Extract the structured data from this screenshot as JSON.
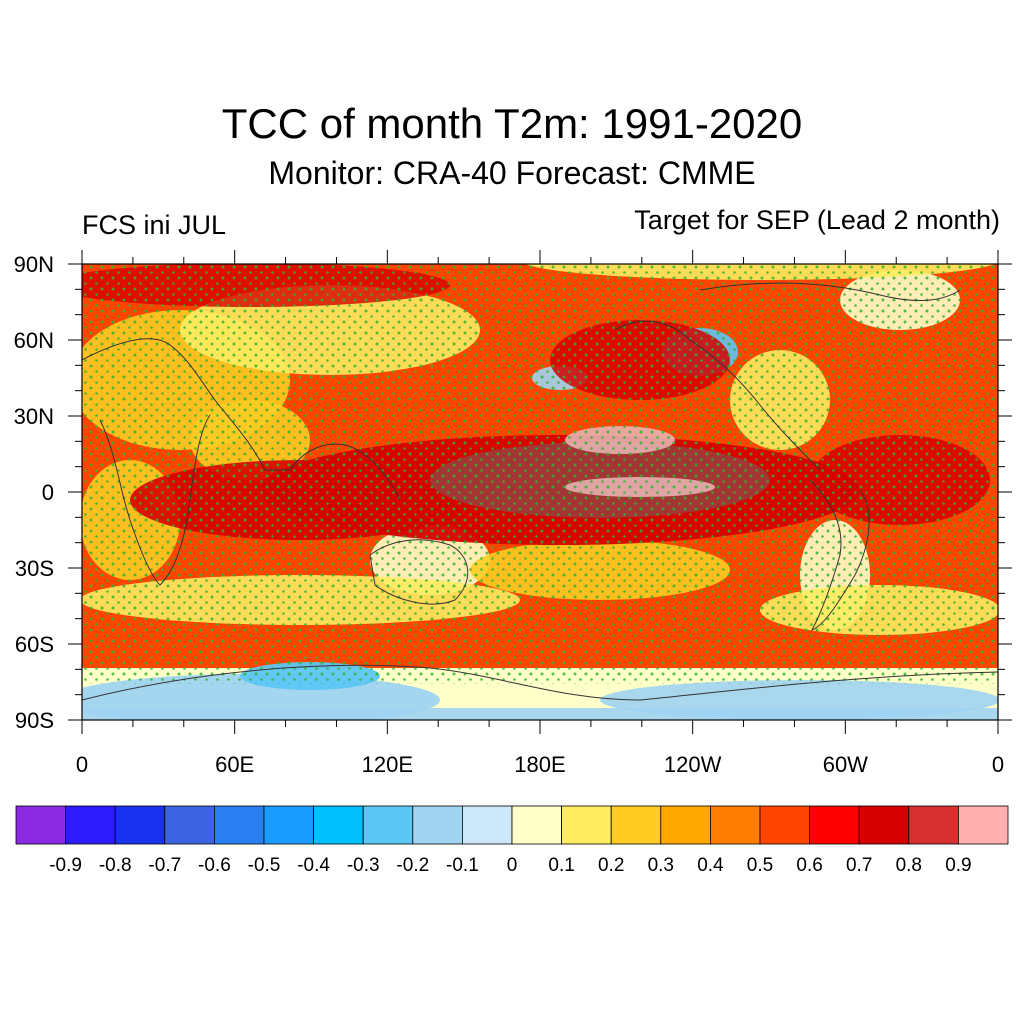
{
  "header": {
    "title": "TCC of month T2m: 1991-2020",
    "subtitle": "Monitor: CRA-40   Forecast: CMME",
    "left_label": "FCS ini JUL",
    "right_label": "Target for SEP (Lead 2 month)"
  },
  "axes": {
    "lat_labels": [
      "90N",
      "60N",
      "30N",
      "0",
      "30S",
      "60S",
      "90S"
    ],
    "lon_labels": [
      "0",
      "60E",
      "120E",
      "180E",
      "120W",
      "60W",
      "0"
    ]
  },
  "colorbar": {
    "colors": [
      "#8a2be2",
      "#2e1cff",
      "#1a33f0",
      "#3e63e0",
      "#2a7ff0",
      "#199bff",
      "#00bfff",
      "#5cc6f5",
      "#a0d4f2",
      "#cce8f8",
      "#ffffc9",
      "#ffec60",
      "#ffcc22",
      "#ffa800",
      "#ff7d00",
      "#ff4500",
      "#ff0000",
      "#d60000",
      "#d63030",
      "#ffb0b0"
    ],
    "labels": [
      "-0.9",
      "-0.8",
      "-0.7",
      "-0.6",
      "-0.5",
      "-0.4",
      "-0.3",
      "-0.2",
      "-0.1",
      "0",
      "0.1",
      "0.2",
      "0.3",
      "0.4",
      "0.5",
      "0.6",
      "0.7",
      "0.8",
      "0.9"
    ]
  },
  "map": {
    "colors": {
      "land_base": "#ffcc22",
      "ocean_base": "#ff4500",
      "strong": "#d60000",
      "very_strong": "#a03838",
      "max": "#e8b0b0",
      "weak": "#ffec60",
      "near_zero": "#ffffc9",
      "negative": "#a0d4f2",
      "negative_strong": "#5cc6f5",
      "stipple": "#2fb52f",
      "coast": "#333333"
    }
  }
}
